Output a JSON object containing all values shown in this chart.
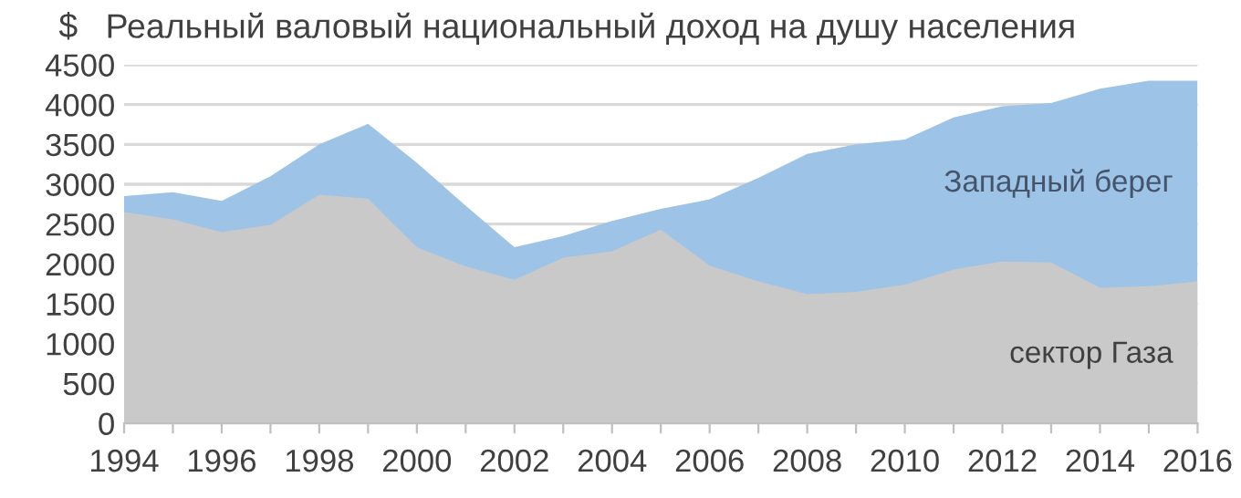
{
  "chart_data": {
    "type": "area",
    "title": "Реальный валовый национальный доход на душу населения",
    "ylabel": "$",
    "x": [
      1994,
      1995,
      1996,
      1997,
      1998,
      1999,
      2000,
      2001,
      2002,
      2003,
      2004,
      2005,
      2006,
      2007,
      2008,
      2009,
      2010,
      2011,
      2012,
      2013,
      2014,
      2015,
      2016
    ],
    "series": [
      {
        "name": "Западный берег",
        "color": "#9dc3e6",
        "values": [
          2850,
          2900,
          2790,
          3100,
          3500,
          3760,
          3270,
          2730,
          2210,
          2350,
          2540,
          2690,
          2810,
          3080,
          3380,
          3500,
          3560,
          3840,
          3980,
          4020,
          4200,
          4300,
          4300
        ]
      },
      {
        "name": "сектор Газа",
        "color": "#c9c9c9",
        "values": [
          2650,
          2560,
          2400,
          2490,
          2870,
          2820,
          2210,
          1970,
          1800,
          2080,
          2160,
          2430,
          1980,
          1780,
          1620,
          1650,
          1740,
          1930,
          2030,
          2020,
          1700,
          1720,
          1780
        ]
      }
    ],
    "xlim": [
      1994,
      2016
    ],
    "xticks": [
      1994,
      {
        "value": 1995,
        "label": null
      },
      1996,
      {
        "value": 1997,
        "label": null
      },
      1998,
      {
        "value": 1999,
        "label": null
      },
      2000,
      {
        "value": 2001,
        "label": null
      },
      2002,
      {
        "value": 2003,
        "label": null
      },
      2004,
      {
        "value": 2005,
        "label": null
      },
      2006,
      {
        "value": 2007,
        "label": null
      },
      2008,
      {
        "value": 2009,
        "label": null
      },
      2010,
      {
        "value": 2011,
        "label": null
      },
      2012,
      {
        "value": 2013,
        "label": null
      },
      2014,
      {
        "value": 2015,
        "label": null
      },
      2016
    ],
    "ylim": [
      0,
      4500
    ],
    "yticks": [
      0,
      500,
      1000,
      1500,
      2000,
      2500,
      3000,
      3500,
      4000,
      4500
    ],
    "grid": "y",
    "legend": false
  }
}
